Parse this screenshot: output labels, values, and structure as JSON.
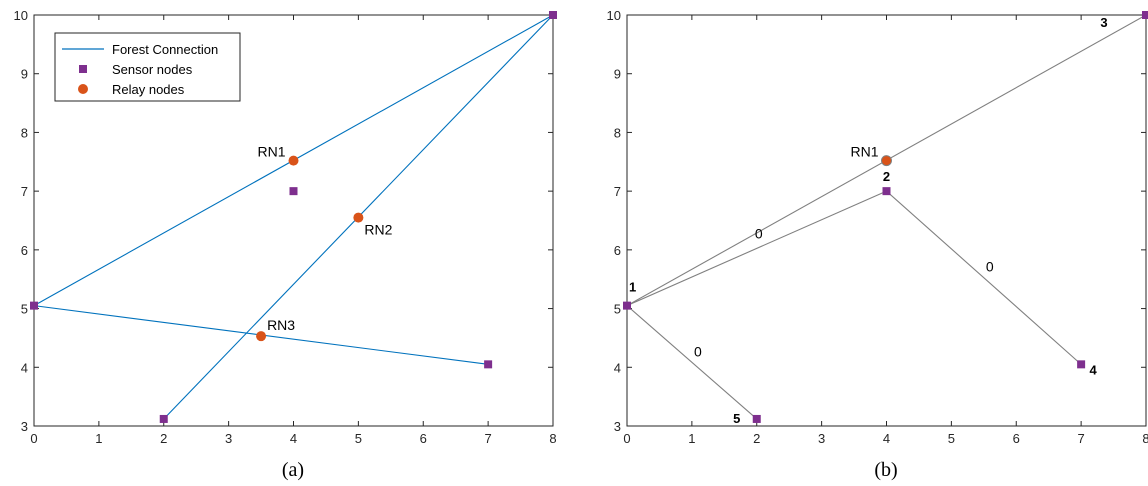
{
  "colors": {
    "forest": "#0072BD",
    "sensor": "#7E2F8E",
    "relay": "#D95319",
    "edge_gray": "#808080",
    "axis": "#262626"
  },
  "chart_data": [
    {
      "type": "scatter",
      "caption": "(a)",
      "xlim": [
        0,
        8
      ],
      "ylim": [
        3,
        10
      ],
      "xticks": [
        "0",
        "1",
        "2",
        "3",
        "4",
        "5",
        "6",
        "7",
        "8"
      ],
      "yticks": [
        "3",
        "4",
        "5",
        "6",
        "7",
        "8",
        "9",
        "10"
      ],
      "legend_position": "top-left",
      "legend": {
        "forest": "Forest Connection",
        "sensor": "Sensor nodes",
        "relay": "Relay nodes"
      },
      "segments": [
        {
          "x": [
            0,
            8
          ],
          "y": [
            5.05,
            10
          ]
        },
        {
          "x": [
            2,
            8
          ],
          "y": [
            3.12,
            10
          ]
        },
        {
          "x": [
            0,
            7
          ],
          "y": [
            5.05,
            4.05
          ]
        }
      ],
      "sensors": [
        {
          "x": 0,
          "y": 5.05
        },
        {
          "x": 8,
          "y": 10
        },
        {
          "x": 4,
          "y": 7
        },
        {
          "x": 2,
          "y": 3.12
        },
        {
          "x": 7,
          "y": 4.05
        }
      ],
      "relays": [
        {
          "x": 4,
          "y": 7.52,
          "label": "RN1",
          "pos": "left"
        },
        {
          "x": 5,
          "y": 6.55,
          "label": "RN2",
          "pos": "below-right"
        },
        {
          "x": 3.5,
          "y": 4.53,
          "label": "RN3",
          "pos": "above-right"
        }
      ]
    },
    {
      "type": "scatter",
      "caption": "(b)",
      "xlim": [
        0,
        8
      ],
      "ylim": [
        3,
        10
      ],
      "xticks": [
        "0",
        "1",
        "2",
        "3",
        "4",
        "5",
        "6",
        "7",
        "8"
      ],
      "yticks": [
        "3",
        "4",
        "5",
        "6",
        "7",
        "8",
        "9",
        "10"
      ],
      "edges": [
        {
          "x": [
            0,
            8
          ],
          "y": [
            5.05,
            10
          ]
        },
        {
          "x": [
            0,
            4
          ],
          "y": [
            5.05,
            7
          ],
          "weight": "0"
        },
        {
          "x": [
            4,
            7
          ],
          "y": [
            7,
            4.05
          ],
          "weight": "0"
        },
        {
          "x": [
            0,
            2
          ],
          "y": [
            5.05,
            3.12
          ],
          "weight": "0"
        }
      ],
      "sensors": [
        {
          "x": 0,
          "y": 5.05,
          "label": "1",
          "pos": "above-right"
        },
        {
          "x": 4,
          "y": 7,
          "label": "2",
          "pos": "above"
        },
        {
          "x": 8,
          "y": 10,
          "label": "3",
          "pos": "below-left"
        },
        {
          "x": 7,
          "y": 4.05,
          "label": "4",
          "pos": "below-right"
        },
        {
          "x": 2,
          "y": 3.12,
          "label": "5",
          "pos": "left"
        }
      ],
      "relays": [
        {
          "x": 4,
          "y": 7.52,
          "label": "RN1",
          "pos": "left"
        }
      ]
    }
  ]
}
